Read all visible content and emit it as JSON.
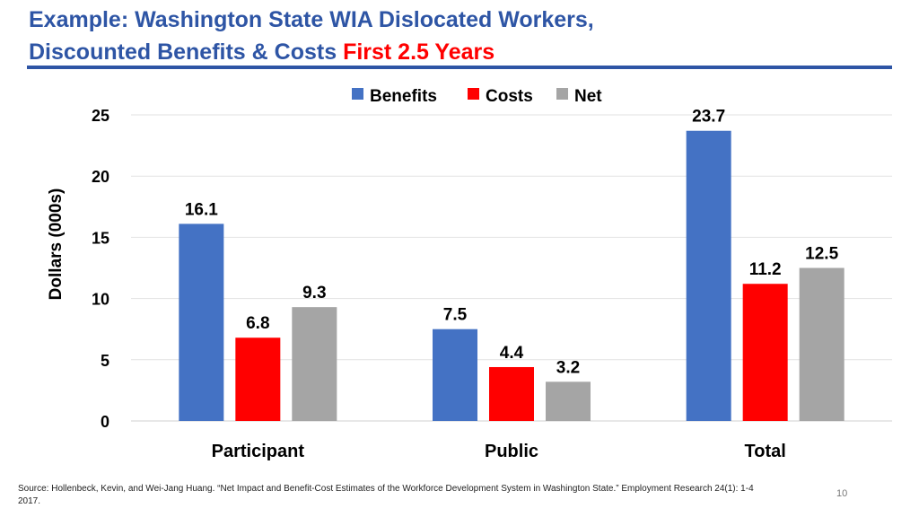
{
  "slide": {
    "title_line1": "Example: Washington State WIA Dislocated Workers,",
    "title_line2_main": "Discounted Benefits & Costs",
    "title_line2_highlight": "First 2.5 Years",
    "source": "Source: Hollenbeck, Kevin, and Wei-Jang Huang. “Net Impact and Benefit-Cost Estimates of the Workforce Development System in Washington State.” Employment Research 24(1): 1-4 2017.",
    "page_number": "10"
  },
  "chart_data": {
    "type": "bar",
    "categories": [
      "Participant",
      "Public",
      "Total"
    ],
    "series": [
      {
        "name": "Benefits",
        "color": "#4472c4",
        "values": [
          16.1,
          7.5,
          23.7
        ]
      },
      {
        "name": "Costs",
        "color": "#ff0000",
        "values": [
          6.8,
          4.4,
          11.2
        ]
      },
      {
        "name": "Net",
        "color": "#a5a5a5",
        "values": [
          9.3,
          3.2,
          12.5
        ]
      }
    ],
    "ylabel": "Dollars (000s)",
    "xlabel": "",
    "ylim": [
      0,
      25
    ],
    "yticks": [
      0,
      5,
      10,
      15,
      20,
      25
    ],
    "grid": true,
    "legend_position": "top"
  }
}
